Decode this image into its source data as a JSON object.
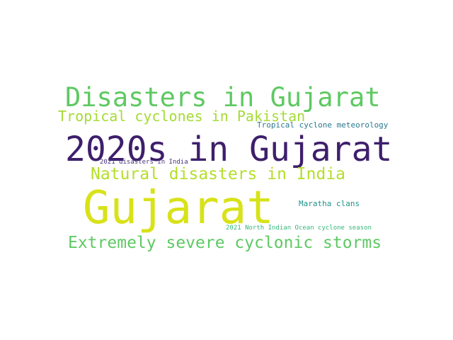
{
  "words": [
    {
      "text": "Disasters in Gujarat",
      "color": "#5ec962"
    },
    {
      "text": "Tropical cyclones in Pakistan",
      "color": "#a5db36"
    },
    {
      "text": "Tropical cyclone meteorology",
      "color": "#2a788e"
    },
    {
      "text": "2020s in Gujarat",
      "color": "#3e1f6b"
    },
    {
      "text": "2021 disasters in India",
      "color": "#46327e"
    },
    {
      "text": "Natural disasters in India",
      "color": "#b5de2b"
    },
    {
      "text": "Gujarat",
      "color": "#d8e219"
    },
    {
      "text": "Maratha clans",
      "color": "#21918c"
    },
    {
      "text": "2021 North Indian Ocean cyclone season",
      "color": "#35b779"
    },
    {
      "text": "Extremely severe cyclonic storms",
      "color": "#5ec962"
    }
  ]
}
